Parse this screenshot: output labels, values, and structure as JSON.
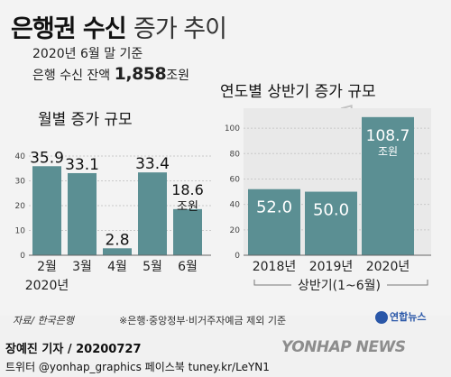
{
  "header": {
    "title_bold": "은행권 수신",
    "title_light": "증가 추이",
    "sub1": "2020년 6월 말 기준",
    "sub2_prefix": "은행 수신 잔액",
    "sub2_value": "1,858",
    "sub2_unit": "조원"
  },
  "footer": {
    "source": "자료/ 한국은행",
    "note": "※은행·중앙정부·비거주자예금 제외 기준",
    "logo": "연합뉴스",
    "byline": "장예진 기자 / 20200727",
    "social": "트위터 @yonhap_graphics  페이스북 tuney.kr/LeYN1",
    "watermark": "YONHAP NEWS"
  },
  "colors": {
    "bar": "#5b8f93",
    "panel": "#f3f3f3",
    "accent_icon": "#d8d8d8"
  },
  "chart_data": [
    {
      "type": "bar",
      "title": "월별 증가 규모",
      "categories": [
        "2월",
        "3월",
        "4월",
        "5월",
        "6월"
      ],
      "category_note": "2020년",
      "values": [
        35.9,
        33.1,
        2.8,
        33.4,
        18.6
      ],
      "value_labels": [
        "35.9",
        "33.1",
        "2.8",
        "33.4",
        "18.6"
      ],
      "last_unit": "조원",
      "yticks": [
        0,
        10,
        20,
        30,
        40
      ],
      "ylim": [
        0,
        40
      ]
    },
    {
      "type": "bar",
      "title": "연도별 상반기 증가 규모",
      "categories": [
        "2018년",
        "2019년",
        "2020년"
      ],
      "values": [
        52.0,
        50.0,
        108.7
      ],
      "value_labels": [
        "52.0",
        "50.0",
        "108.7"
      ],
      "last_unit": "조원",
      "xaxis_note": "상반기(1~6월)",
      "yticks": [
        0,
        20,
        40,
        60,
        80,
        100
      ],
      "ylim": [
        0,
        110
      ]
    }
  ]
}
